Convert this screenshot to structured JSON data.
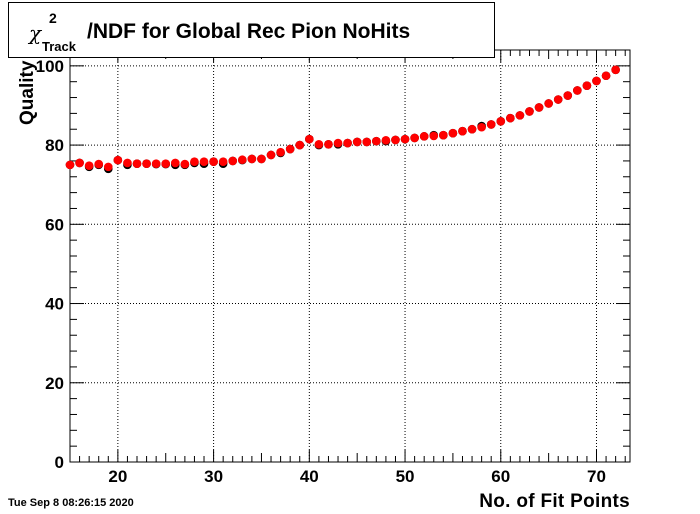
{
  "title": {
    "symbol": "χ",
    "superscript": "2",
    "subscript": "Track",
    "text": "/NDF for Global Rec Pion NoHits"
  },
  "timestamp": "Tue Sep  8 08:26:15 2020",
  "chart_data": {
    "type": "scatter",
    "title": "χ²Track/NDF for Global Rec Pion NoHits",
    "xlabel": "No. of Fit Points",
    "ylabel": "Quality",
    "xlim": [
      15,
      73.5
    ],
    "ylim": [
      0,
      104
    ],
    "x_ticks": [
      "20",
      "30",
      "40",
      "50",
      "60",
      "70"
    ],
    "y_ticks": [
      "0",
      "20",
      "40",
      "60",
      "80",
      "100"
    ],
    "grid": true,
    "series": [
      {
        "color": "#000000",
        "x": [
          15,
          16,
          17,
          18,
          19,
          20,
          21,
          22,
          23,
          24,
          25,
          26,
          27,
          28,
          29,
          30,
          31,
          32,
          33,
          34,
          35,
          36,
          37,
          38,
          39,
          40,
          41,
          42,
          43,
          44,
          45,
          46,
          47,
          48,
          49,
          50,
          51,
          52,
          53,
          54,
          55,
          56,
          57,
          58,
          59,
          60,
          61,
          62,
          63,
          64,
          65,
          66,
          67,
          68,
          69,
          70,
          71,
          72
        ],
        "y": [
          75.0,
          75.5,
          74.5,
          75.0,
          74.0,
          76.2,
          75.0,
          75.3,
          75.3,
          75.2,
          75.2,
          75.0,
          75.0,
          75.5,
          75.3,
          75.8,
          75.3,
          76.0,
          76.2,
          76.5,
          76.5,
          77.5,
          78.0,
          79.0,
          80.0,
          81.5,
          80.0,
          80.2,
          80.2,
          80.5,
          80.8,
          80.8,
          81.0,
          81.0,
          81.3,
          81.5,
          81.8,
          82.2,
          82.5,
          82.5,
          83.0,
          83.5,
          84.0,
          84.8,
          85.2,
          86.0,
          86.8,
          87.5,
          88.5,
          89.5,
          90.5,
          91.5,
          92.5,
          93.8,
          95.0,
          96.2,
          97.5,
          99.0
        ]
      },
      {
        "color": "#ff0000",
        "x": [
          15,
          16,
          17,
          18,
          19,
          20,
          21,
          22,
          23,
          24,
          25,
          26,
          27,
          28,
          29,
          30,
          31,
          32,
          33,
          34,
          35,
          36,
          37,
          38,
          39,
          40,
          41,
          42,
          43,
          44,
          45,
          46,
          47,
          48,
          49,
          50,
          51,
          52,
          53,
          54,
          55,
          56,
          57,
          58,
          59,
          60,
          61,
          62,
          63,
          64,
          65,
          66,
          67,
          68,
          69,
          70,
          71,
          72
        ],
        "y": [
          75.0,
          75.5,
          74.8,
          75.2,
          74.5,
          76.2,
          75.5,
          75.3,
          75.3,
          75.3,
          75.3,
          75.5,
          75.2,
          75.8,
          75.8,
          75.8,
          75.8,
          76.0,
          76.3,
          76.5,
          76.5,
          77.5,
          78.2,
          79.0,
          80.0,
          81.5,
          80.2,
          80.2,
          80.5,
          80.5,
          80.8,
          80.8,
          81.0,
          81.2,
          81.3,
          81.5,
          81.8,
          82.2,
          82.3,
          82.5,
          83.0,
          83.5,
          84.0,
          84.5,
          85.2,
          86.0,
          86.8,
          87.5,
          88.5,
          89.5,
          90.5,
          91.5,
          92.5,
          93.8,
          95.0,
          96.2,
          97.5,
          99.0
        ]
      }
    ]
  }
}
